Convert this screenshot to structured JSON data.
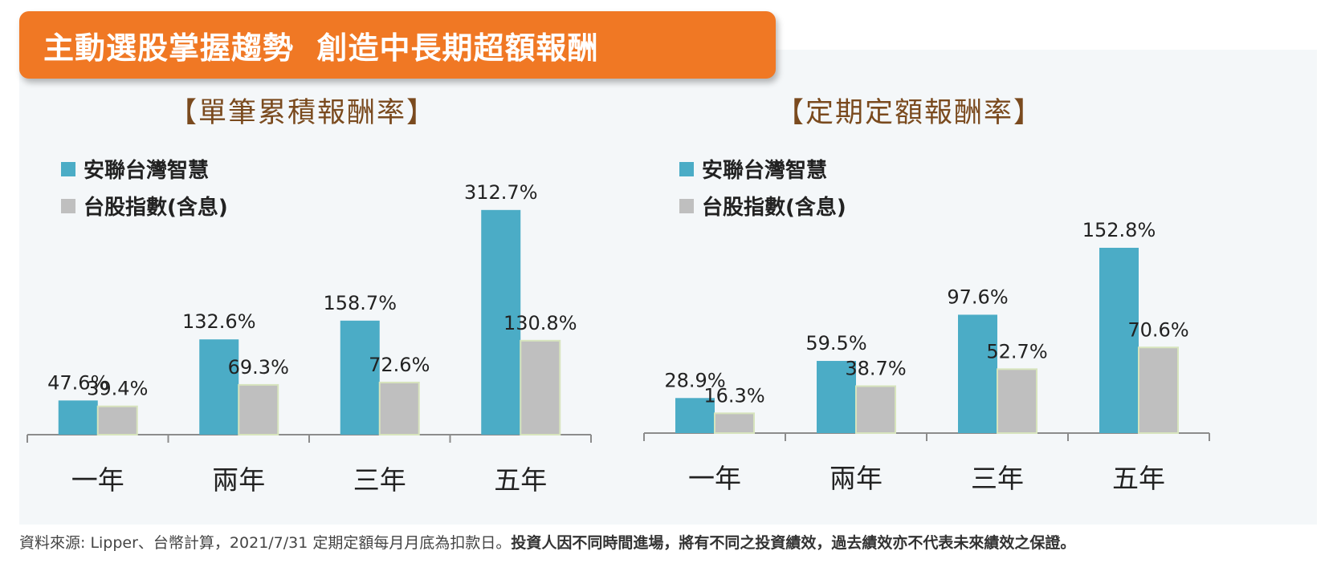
{
  "banner": {
    "title": "主動選股掌握趨勢  創造中長期超額報酬"
  },
  "colors": {
    "fund": "#4bacc6",
    "index": "#bfbfbf",
    "index_border": "#d7e4bd",
    "banner": "#f07824",
    "title": "#7a4a1e"
  },
  "chart_data": [
    {
      "type": "bar",
      "title": "【單筆累積報酬率】",
      "categories": [
        "一年",
        "兩年",
        "三年",
        "五年"
      ],
      "series": [
        {
          "name": "安聯台灣智慧",
          "values": [
            47.6,
            132.6,
            158.7,
            312.7
          ],
          "labels": [
            "47.6%",
            "132.6%",
            "158.7%",
            "312.7%"
          ]
        },
        {
          "name": "台股指數(含息)",
          "values": [
            39.4,
            69.3,
            72.6,
            130.8
          ],
          "labels": [
            "39.4%",
            "69.3%",
            "72.6%",
            "130.8%"
          ]
        }
      ],
      "legend": "top-left",
      "grid": false
    },
    {
      "type": "bar",
      "title": "【定期定額報酬率】",
      "categories": [
        "一年",
        "兩年",
        "三年",
        "五年"
      ],
      "series": [
        {
          "name": "安聯台灣智慧",
          "values": [
            28.9,
            59.5,
            97.6,
            152.8
          ],
          "labels": [
            "28.9%",
            "59.5%",
            "97.6%",
            "152.8%"
          ]
        },
        {
          "name": "台股指數(含息)",
          "values": [
            16.3,
            38.7,
            52.7,
            70.6
          ],
          "labels": [
            "16.3%",
            "38.7%",
            "52.7%",
            "70.6%"
          ]
        }
      ],
      "legend": "top-left",
      "grid": false
    }
  ],
  "footnote": {
    "normal": "資料來源: Lipper、台幣計算，2021/7/31 定期定額每月月底為扣款日。",
    "bold": "投資人因不同時間進場，將有不同之投資績效，過去績效亦不代表未來績效之保證。"
  }
}
